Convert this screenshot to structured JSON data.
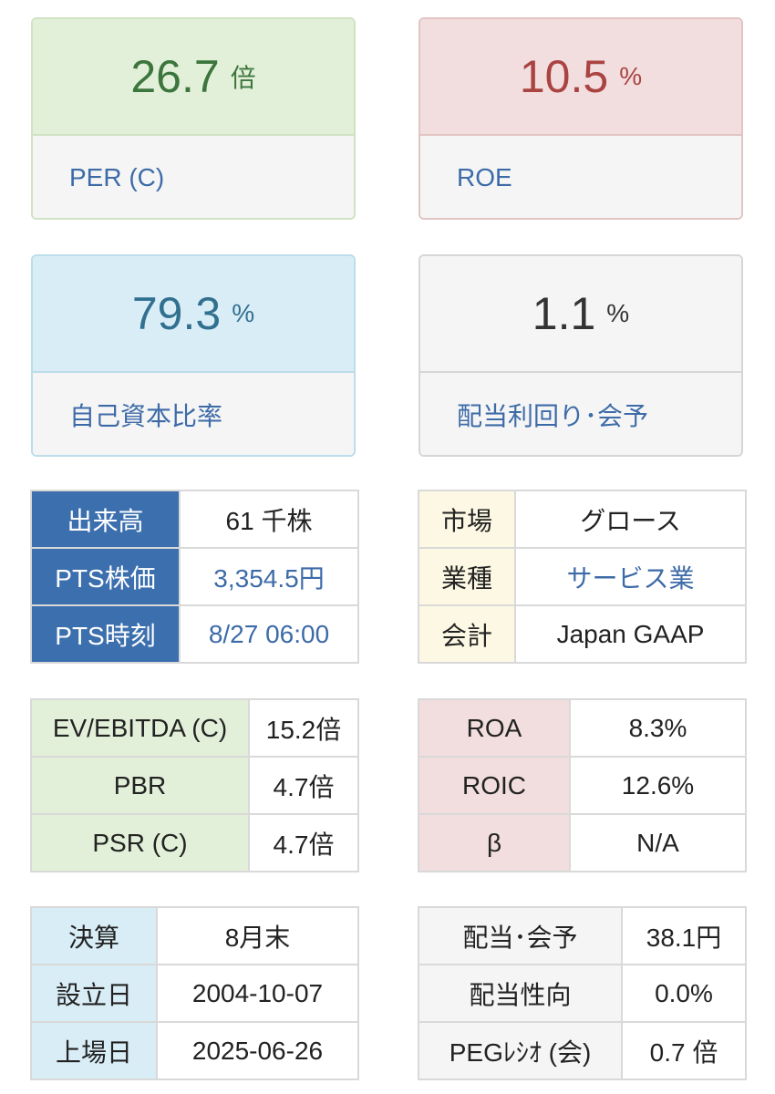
{
  "cards": {
    "per": {
      "value": "26.7",
      "unit": "倍",
      "label": "PER (C)"
    },
    "roe": {
      "value": "10.5",
      "unit": "%",
      "label": "ROE"
    },
    "equity_ratio": {
      "value": "79.3",
      "unit": "%",
      "label": "自己資本比率"
    },
    "dividend_yield": {
      "value": "1.1",
      "unit": "%",
      "label": "配当利回り･会予"
    }
  },
  "trading": {
    "volume": {
      "label": "出来高",
      "value": "61 千株"
    },
    "pts_price": {
      "label": "PTS株価",
      "value": "3,354.5円"
    },
    "pts_time": {
      "label": "PTS時刻",
      "value": "8/27 06:00"
    }
  },
  "company": {
    "market": {
      "label": "市場",
      "value": "グロース"
    },
    "sector": {
      "label": "業種",
      "value": "サービス業"
    },
    "accounting": {
      "label": "会計",
      "value": "Japan GAAP"
    }
  },
  "valuation": {
    "ev_ebitda": {
      "label": "EV/EBITDA (C)",
      "value": "15.2倍"
    },
    "pbr": {
      "label": "PBR",
      "value": "4.7倍"
    },
    "psr": {
      "label": "PSR (C)",
      "value": "4.7倍"
    }
  },
  "profitability": {
    "roa": {
      "label": "ROA",
      "value": "8.3%"
    },
    "roic": {
      "label": "ROIC",
      "value": "12.6%"
    },
    "beta": {
      "label": "β",
      "value": "N/A"
    }
  },
  "dates": {
    "fiscal": {
      "label": "決算",
      "value": "8月末"
    },
    "founded": {
      "label": "設立日",
      "value": "2004-10-07"
    },
    "listed": {
      "label": "上場日",
      "value": "2025-06-26"
    }
  },
  "dividend": {
    "dps": {
      "label": "配当･会予",
      "value": "38.1円"
    },
    "payout": {
      "label": "配当性向",
      "value": "0.0%"
    },
    "peg": {
      "label": "PEGﾚｼｵ (会)",
      "value": "0.7 倍"
    }
  }
}
